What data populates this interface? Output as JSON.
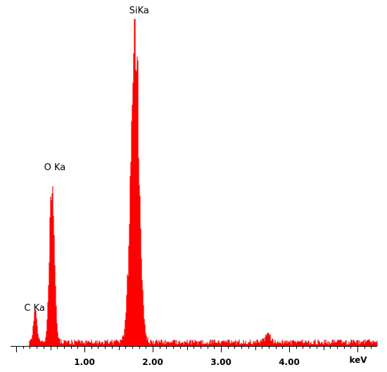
{
  "chart_data": {
    "type": "area",
    "title": "",
    "xlabel": "keV",
    "ylabel": "",
    "xlim": [
      0.0,
      5.35
    ],
    "ylim": [
      0,
      100
    ],
    "x_ticks": [
      1.0,
      2.0,
      3.0,
      4.0
    ],
    "x_tick_labels": [
      "1.00",
      "2.00",
      "3.00",
      "4.00"
    ],
    "grid": false,
    "legend": "none",
    "fill_color": "#ff0000",
    "axis_color": "#000000",
    "peaks": [
      {
        "label": "C Ka",
        "energy_keV": 0.28,
        "height": 9
      },
      {
        "label": "O Ka",
        "energy_keV": 0.525,
        "height": 52
      },
      {
        "label": "SiKa",
        "energy_keV": 1.74,
        "height": 100
      }
    ],
    "minor_peaks": [
      {
        "energy_keV": 3.69,
        "height": 2.5
      }
    ],
    "background_level": 1.0
  }
}
